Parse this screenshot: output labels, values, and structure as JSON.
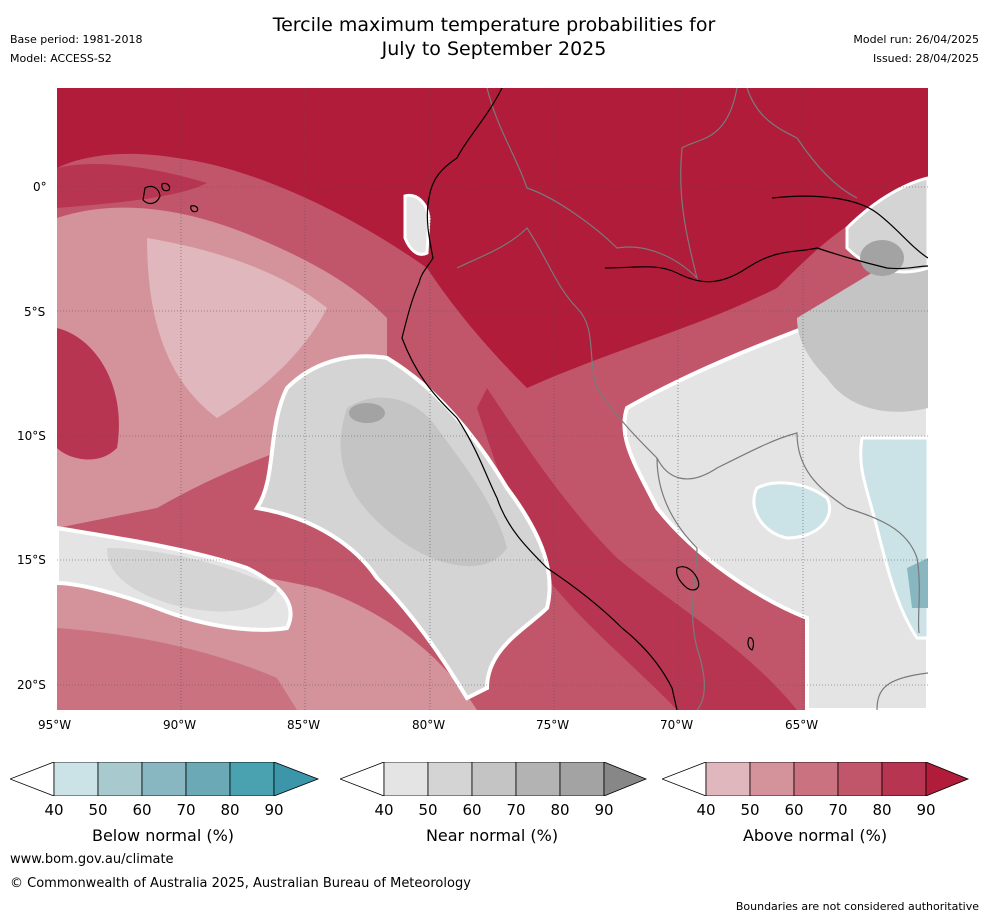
{
  "header": {
    "title_line1": "Tercile maximum temperature probabilities for",
    "title_line2": "July to September 2025",
    "base_period": "Base period: 1981-2018",
    "model": "Model: ACCESS-S2",
    "model_run": "Model run: 26/04/2025",
    "issued": "Issued: 28/04/2025"
  },
  "map": {
    "lat_labels": [
      "0°",
      "5°S",
      "10°S",
      "15°S",
      "20°S"
    ],
    "lon_labels": [
      "95°W",
      "90°W",
      "85°W",
      "80°W",
      "75°W",
      "70°W",
      "65°W"
    ],
    "colors": {
      "above": [
        "#dfb7bd",
        "#d4939b",
        "#ca7280",
        "#c1566a",
        "#b83551",
        "#b01c3a"
      ],
      "near": [
        "#e4e4e4",
        "#d4d4d4",
        "#c4c4c4",
        "#b3b3b3",
        "#a3a3a3",
        "#878787"
      ],
      "below": [
        "#cbe3e7",
        "#a8c9ce",
        "#89b7c1",
        "#6aa9b5",
        "#4aa2b0",
        "#3a96a8"
      ]
    }
  },
  "colorbars": [
    {
      "label": "Below normal (%)",
      "ticks": [
        "40",
        "50",
        "60",
        "70",
        "80",
        "90"
      ],
      "colors": [
        "#cbe3e7",
        "#a8c9ce",
        "#89b7c1",
        "#6aa9b5",
        "#4aa2b0",
        "#3a96a8"
      ]
    },
    {
      "label": "Near normal (%)",
      "ticks": [
        "40",
        "50",
        "60",
        "70",
        "80",
        "90"
      ],
      "colors": [
        "#e4e4e4",
        "#d4d4d4",
        "#c4c4c4",
        "#b3b3b3",
        "#a3a3a3",
        "#878787"
      ]
    },
    {
      "label": "Above normal (%)",
      "ticks": [
        "40",
        "50",
        "60",
        "70",
        "80",
        "90"
      ],
      "colors": [
        "#dfb7bd",
        "#d4939b",
        "#ca7280",
        "#c1566a",
        "#b83551",
        "#b01c3a"
      ]
    }
  ],
  "footer": {
    "url": "www.bom.gov.au/climate",
    "copyright": "© Commonwealth of Australia 2025, Australian Bureau of Meteorology",
    "disclaimer": "Boundaries are not considered authoritative"
  }
}
